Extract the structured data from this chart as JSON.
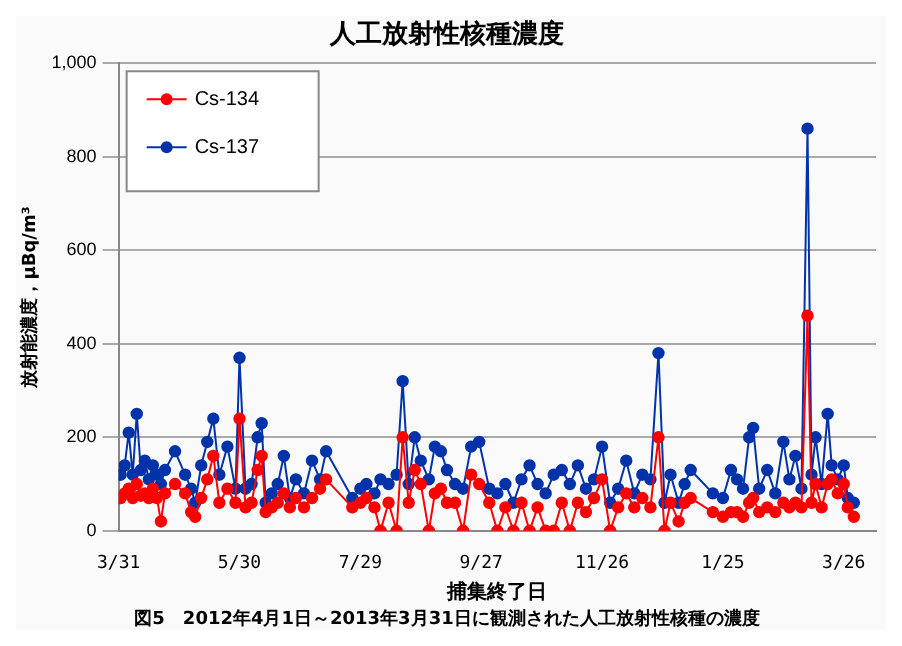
{
  "chart_data": {
    "type": "line",
    "title": "人工放射性核種濃度",
    "xlabel": "捕集終了日",
    "ylabel": "放射能濃度，μBq/m³",
    "annotations": [
      "図5　2012年4月1日～2013年3月31日に観測された人工放射性核種の濃度"
    ],
    "x": [
      "2012-04-01",
      "2012-04-03",
      "2012-04-05",
      "2012-04-07",
      "2012-04-09",
      "2012-04-11",
      "2012-04-13",
      "2012-04-15",
      "2012-04-17",
      "2012-04-19",
      "2012-04-21",
      "2012-04-23",
      "2012-04-28",
      "2012-05-03",
      "2012-05-06",
      "2012-05-08",
      "2012-05-11",
      "2012-05-14",
      "2012-05-17",
      "2012-05-20",
      "2012-05-24",
      "2012-05-28",
      "2012-05-30",
      "2012-06-02",
      "2012-06-05",
      "2012-06-08",
      "2012-06-10",
      "2012-06-12",
      "2012-06-15",
      "2012-06-18",
      "2012-06-21",
      "2012-06-24",
      "2012-06-27",
      "2012-07-01",
      "2012-07-05",
      "2012-07-09",
      "2012-07-12",
      "2012-07-25",
      "2012-07-29",
      "2012-08-01",
      "2012-08-05",
      "2012-08-08",
      "2012-08-12",
      "2012-08-16",
      "2012-08-19",
      "2012-08-22",
      "2012-08-25",
      "2012-08-28",
      "2012-09-01",
      "2012-09-04",
      "2012-09-07",
      "2012-09-10",
      "2012-09-14",
      "2012-09-18",
      "2012-09-22",
      "2012-09-26",
      "2012-10-01",
      "2012-10-05",
      "2012-10-09",
      "2012-10-13",
      "2012-10-17",
      "2012-10-21",
      "2012-10-25",
      "2012-10-29",
      "2012-11-02",
      "2012-11-06",
      "2012-11-10",
      "2012-11-14",
      "2012-11-18",
      "2012-11-22",
      "2012-11-26",
      "2012-11-30",
      "2012-12-04",
      "2012-12-08",
      "2012-12-12",
      "2012-12-16",
      "2012-12-20",
      "2012-12-24",
      "2012-12-27",
      "2012-12-30",
      "2013-01-03",
      "2013-01-06",
      "2013-01-09",
      "2013-01-20",
      "2013-01-25",
      "2013-01-29",
      "2013-02-01",
      "2013-02-04",
      "2013-02-07",
      "2013-02-09",
      "2013-02-12",
      "2013-02-16",
      "2013-02-20",
      "2013-02-24",
      "2013-02-27",
      "2013-03-02",
      "2013-03-05",
      "2013-03-08",
      "2013-03-10",
      "2013-03-12",
      "2013-03-15",
      "2013-03-18",
      "2013-03-20",
      "2013-03-23",
      "2013-03-26",
      "2013-03-28",
      "2013-03-31"
    ],
    "series": [
      {
        "name": "Cs-134",
        "color": "#ff0000",
        "values": [
          70,
          80,
          90,
          70,
          100,
          75,
          80,
          70,
          90,
          70,
          20,
          80,
          100,
          80,
          40,
          30,
          70,
          110,
          160,
          60,
          90,
          60,
          240,
          50,
          60,
          130,
          160,
          40,
          50,
          60,
          80,
          50,
          70,
          50,
          70,
          90,
          110,
          50,
          60,
          70,
          50,
          0,
          60,
          0,
          200,
          60,
          130,
          100,
          0,
          80,
          90,
          60,
          60,
          0,
          120,
          100,
          60,
          0,
          50,
          0,
          60,
          0,
          50,
          0,
          0,
          60,
          0,
          60,
          40,
          70,
          110,
          0,
          50,
          80,
          50,
          70,
          50,
          200,
          0,
          60,
          20,
          60,
          70,
          40,
          30,
          40,
          40,
          30,
          60,
          70,
          40,
          50,
          40,
          60,
          50,
          60,
          50,
          460,
          60,
          100,
          50,
          100,
          110,
          80,
          100,
          50,
          30
        ]
      },
      {
        "name": "Cs-137",
        "color": "#0033aa",
        "values": [
          120,
          140,
          210,
          120,
          250,
          130,
          150,
          110,
          140,
          120,
          100,
          130,
          170,
          120,
          90,
          60,
          140,
          190,
          240,
          120,
          180,
          90,
          370,
          90,
          100,
          200,
          230,
          60,
          80,
          100,
          160,
          70,
          110,
          80,
          150,
          110,
          170,
          70,
          90,
          100,
          80,
          110,
          100,
          120,
          320,
          100,
          200,
          150,
          110,
          180,
          170,
          130,
          100,
          90,
          180,
          190,
          90,
          80,
          100,
          60,
          110,
          140,
          100,
          80,
          120,
          130,
          100,
          140,
          90,
          110,
          180,
          60,
          90,
          150,
          80,
          120,
          110,
          380,
          60,
          120,
          60,
          100,
          130,
          80,
          70,
          130,
          110,
          90,
          200,
          220,
          90,
          130,
          80,
          190,
          110,
          160,
          90,
          860,
          120,
          200,
          100,
          250,
          140,
          110,
          140,
          70,
          60
        ]
      }
    ],
    "xlim": [
      "2012-03-31",
      "2013-04-11"
    ],
    "xticks": [
      {
        "value": "2012-03-31",
        "label": "3/31"
      },
      {
        "value": "2012-05-30",
        "label": "5/30"
      },
      {
        "value": "2012-07-29",
        "label": "7/29"
      },
      {
        "value": "2012-09-27",
        "label": "9/27"
      },
      {
        "value": "2012-11-26",
        "label": "11/26"
      },
      {
        "value": "2013-01-25",
        "label": "1/25"
      },
      {
        "value": "2013-03-26",
        "label": "3/26"
      }
    ],
    "ylim": [
      0,
      1000
    ],
    "yticks": [
      0,
      200,
      400,
      600,
      800,
      {
        "value": 1000,
        "label": "1,000"
      }
    ],
    "grid": "y",
    "legend": "top left",
    "marker": "circle",
    "line_style": "solid"
  }
}
